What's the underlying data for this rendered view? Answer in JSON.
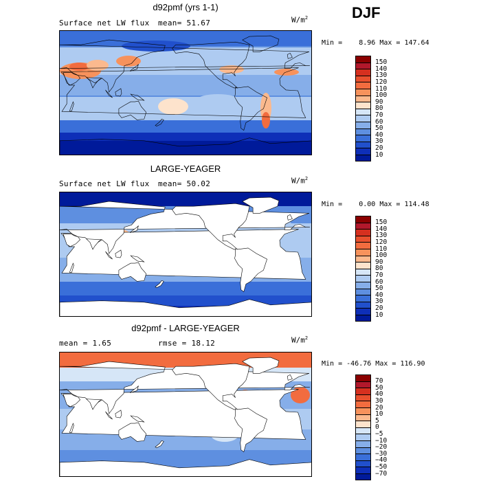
{
  "season": "DJF",
  "units_base": "W/m",
  "units_exp": "2",
  "panels": [
    {
      "title": "d92pmf (yrs 1-1)",
      "left_label": "Surface net LW flux",
      "right_label": "mean=  51.67",
      "min_label": "Min =",
      "min_value": "8.96",
      "max_label": "Max =",
      "max_value": "147.64",
      "field": "model",
      "colorbar_labels": [
        "150",
        "140",
        "130",
        "120",
        "110",
        "100",
        "90",
        "80",
        "70",
        "60",
        "50",
        "40",
        "30",
        "20",
        "10"
      ],
      "colorbar_colors": [
        "#8b0000",
        "#b2182b",
        "#d6301f",
        "#e8502e",
        "#f26c3f",
        "#f7925c",
        "#fbb98e",
        "#fde3cc",
        "#d6e6f7",
        "#aecbf1",
        "#86aee9",
        "#5e8fe0",
        "#3a6fd9",
        "#2150cc",
        "#0e2fb8",
        "#001a9a"
      ]
    },
    {
      "title": "LARGE-YEAGER",
      "left_label": "Surface net LW flux",
      "right_label": "mean=  50.02",
      "min_label": "Min =",
      "min_value": "0.00",
      "max_label": "Max =",
      "max_value": "114.48",
      "field": "obs",
      "colorbar_labels": [
        "150",
        "140",
        "130",
        "120",
        "110",
        "100",
        "90",
        "80",
        "70",
        "60",
        "50",
        "40",
        "30",
        "20",
        "10"
      ],
      "colorbar_colors": [
        "#8b0000",
        "#b2182b",
        "#d6301f",
        "#e8502e",
        "#f26c3f",
        "#f7925c",
        "#fbb98e",
        "#fde3cc",
        "#d6e6f7",
        "#aecbf1",
        "#86aee9",
        "#5e8fe0",
        "#3a6fd9",
        "#2150cc",
        "#0e2fb8",
        "#001a9a"
      ]
    },
    {
      "title": "d92pmf - LARGE-YEAGER",
      "left_label": "mean =   1.65",
      "right_label": "rmse =  18.12",
      "min_label": "Min =",
      "min_value": "-46.76",
      "max_label": "Max =",
      "max_value": "116.90",
      "field": "diff",
      "colorbar_labels": [
        "70",
        "50",
        "40",
        "30",
        "20",
        "10",
        "5",
        "0",
        "−5",
        "−10",
        "−20",
        "−30",
        "−40",
        "−50",
        "−70"
      ],
      "colorbar_colors": [
        "#8b0000",
        "#b2182b",
        "#d6301f",
        "#e8502e",
        "#f26c3f",
        "#f7925c",
        "#fbb98e",
        "#fde3cc",
        "#d6e6f7",
        "#aecbf1",
        "#86aee9",
        "#5e8fe0",
        "#3a6fd9",
        "#2150cc",
        "#0e2fb8",
        "#001a9a"
      ]
    }
  ]
}
